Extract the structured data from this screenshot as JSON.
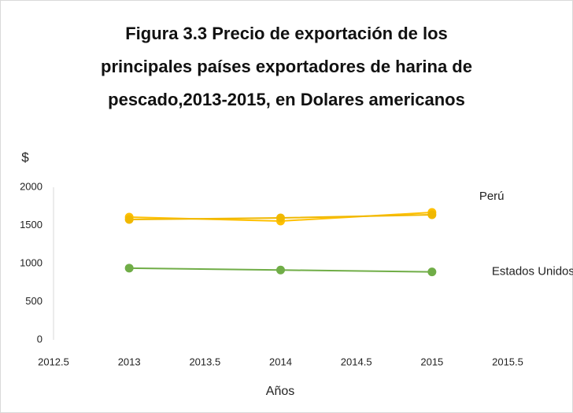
{
  "chart_data": {
    "type": "line",
    "title": [
      "Figura 3.3  Precio de exportación de los",
      "principales países exportadores de harina de",
      "pescado,2013-2015, en Dolares americanos"
    ],
    "y_label": "$",
    "x_label": "Años",
    "x": [
      2013,
      2014,
      2015
    ],
    "series": [
      {
        "name": "Perú",
        "color": "#FFC000",
        "values": [
          1608,
          1557,
          1670
        ]
      },
      {
        "color": "#F0B800",
        "values": [
          1577,
          1598,
          1639
        ]
      },
      {
        "name": "Estados Unidos",
        "color": "#70AD47",
        "values": [
          940,
          915,
          890
        ]
      }
    ],
    "xlim": [
      2012.5,
      2015.5
    ],
    "xticks": [
      2012.5,
      2013,
      2013.5,
      2014,
      2014.5,
      2015,
      2015.5
    ],
    "ylim": [
      0,
      2000
    ],
    "yticks": [
      0,
      500,
      1000,
      1500,
      2000
    ],
    "grid": false
  }
}
